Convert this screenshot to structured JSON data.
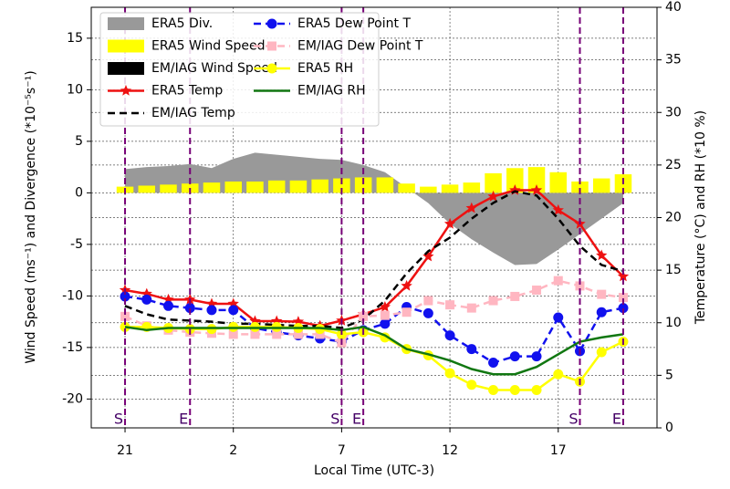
{
  "chart_data": {
    "type": "combo",
    "xlabel": "Local Time (UTC-3)",
    "ylabel": "Wind Speed (ms⁻¹) and Divergence (*10⁻⁵s⁻¹)",
    "y2label": "Temperature (°C) and RH (*10 %)",
    "x": [
      21,
      22,
      23,
      24,
      25,
      26,
      27,
      28,
      29,
      30,
      31,
      32,
      33,
      34,
      35,
      36,
      37,
      38,
      39,
      40,
      41,
      42,
      43,
      44
    ],
    "xlim": [
      19.44,
      45.56
    ],
    "xticks": [
      21,
      {
        "value": 26,
        "label": "2"
      },
      {
        "value": 31,
        "label": "7"
      },
      {
        "value": 36,
        "label": "12"
      },
      {
        "value": 41,
        "label": "17"
      }
    ],
    "ylim": [
      -22.8,
      18
    ],
    "yticks": [
      -20,
      -15,
      -10,
      -5,
      0,
      5,
      10,
      15
    ],
    "y2lim": [
      0,
      40
    ],
    "y2ticks": [
      0,
      5,
      10,
      15,
      20,
      25,
      30,
      35,
      40
    ],
    "grid": true,
    "legend": "upper left",
    "event_lines": [
      {
        "x": 21,
        "label": "S"
      },
      {
        "x": 24,
        "label": "E"
      },
      {
        "x": 31,
        "label": "S"
      },
      {
        "x": 32,
        "label": "E"
      },
      {
        "x": 42,
        "label": "S"
      },
      {
        "x": 44,
        "label": "E"
      }
    ],
    "series": [
      {
        "name": "ERA5 Div.",
        "color": "#999999",
        "kind": "area",
        "axis": "y",
        "values": [
          2.3,
          2.5,
          2.6,
          2.8,
          2.4,
          3.3,
          3.9,
          3.7,
          3.5,
          3.3,
          3.2,
          2.7,
          2.0,
          0.5,
          -1.0,
          -3.0,
          -4.5,
          -5.8,
          -7.0,
          -6.9,
          -5.5,
          -4.0,
          -2.5,
          -1.0
        ]
      },
      {
        "name": "ERA5 Wind Speed",
        "color": "#ffff00",
        "kind": "bar",
        "axis": "y",
        "values": [
          0.6,
          0.7,
          0.8,
          0.9,
          1.0,
          1.1,
          1.1,
          1.2,
          1.2,
          1.3,
          1.4,
          1.5,
          1.5,
          0.9,
          0.6,
          0.8,
          1.0,
          1.9,
          2.4,
          2.5,
          2.0,
          1.1,
          1.4,
          1.8
        ]
      },
      {
        "name": "EM/IAG Wind Speed",
        "color": "#000000",
        "kind": "bar",
        "axis": "y",
        "values": [
          null,
          null,
          null,
          null,
          null,
          null,
          null,
          null,
          null,
          null,
          null,
          null,
          null,
          null,
          null,
          null,
          null,
          null,
          null,
          null,
          null,
          null,
          null,
          null
        ]
      },
      {
        "name": "ERA5 Temp",
        "color": "#ee1111",
        "kind": "line",
        "marker": "star",
        "axis": "y2",
        "values": [
          13.1,
          12.75,
          12.2,
          12.2,
          11.8,
          11.8,
          10.15,
          10.15,
          10.1,
          9.7,
          10.2,
          10.8,
          11.5,
          13.5,
          16.3,
          19.4,
          20.9,
          22.0,
          22.6,
          22.6,
          20.7,
          19.4,
          16.4,
          14.4
        ]
      },
      {
        "name": "EM/IAG Temp",
        "color": "#000000",
        "kind": "line",
        "dash": true,
        "axis": "y2",
        "values": [
          11.6,
          10.8,
          10.3,
          10.2,
          10.1,
          9.9,
          9.9,
          9.8,
          9.7,
          9.7,
          9.5,
          10.3,
          12.1,
          14.7,
          16.8,
          18.1,
          19.9,
          21.4,
          22.5,
          22.1,
          19.9,
          17.3,
          15.5,
          14.9
        ]
      },
      {
        "name": "ERA5 Dew Point T",
        "color": "#1111ee",
        "kind": "line",
        "marker": "circle",
        "dash": true,
        "axis": "y2",
        "values": [
          12.5,
          12.2,
          11.6,
          11.4,
          11.2,
          11.2,
          9.5,
          9.1,
          8.8,
          8.5,
          8.2,
          9.3,
          9.9,
          11.5,
          10.9,
          8.8,
          7.5,
          6.2,
          6.8,
          6.8,
          10.5,
          7.3,
          11.0,
          11.4
        ]
      },
      {
        "name": "EM/IAG Dew Point T",
        "color": "#ffb6c1",
        "kind": "line",
        "marker": "square",
        "dash": true,
        "axis": "y2",
        "values": [
          10.6,
          9.7,
          9.3,
          9.1,
          9.0,
          8.9,
          8.9,
          8.9,
          8.9,
          8.9,
          8.1,
          10.6,
          10.7,
          11.0,
          12.1,
          11.7,
          11.4,
          12.1,
          12.5,
          13.1,
          14.0,
          13.5,
          12.7,
          12.4
        ]
      },
      {
        "name": "ERA5 RH",
        "color": "#ffff00",
        "kind": "line",
        "marker": "circle",
        "axis": "y2",
        "values": [
          9.6,
          9.6,
          9.5,
          9.4,
          9.4,
          9.6,
          9.6,
          9.6,
          9.5,
          9.4,
          8.9,
          9.1,
          8.6,
          7.5,
          6.9,
          5.2,
          4.1,
          3.6,
          3.6,
          3.6,
          5.1,
          4.4,
          7.2,
          8.2
        ]
      },
      {
        "name": "EM/IAG RH",
        "color": "#117711",
        "kind": "line",
        "axis": "y2",
        "values": [
          9.6,
          9.3,
          9.5,
          9.5,
          9.5,
          9.5,
          9.5,
          9.5,
          9.5,
          9.5,
          9.3,
          9.6,
          8.8,
          7.5,
          7.0,
          6.4,
          5.6,
          5.1,
          5.1,
          5.8,
          7.0,
          8.2,
          8.6,
          8.9
        ]
      }
    ]
  }
}
